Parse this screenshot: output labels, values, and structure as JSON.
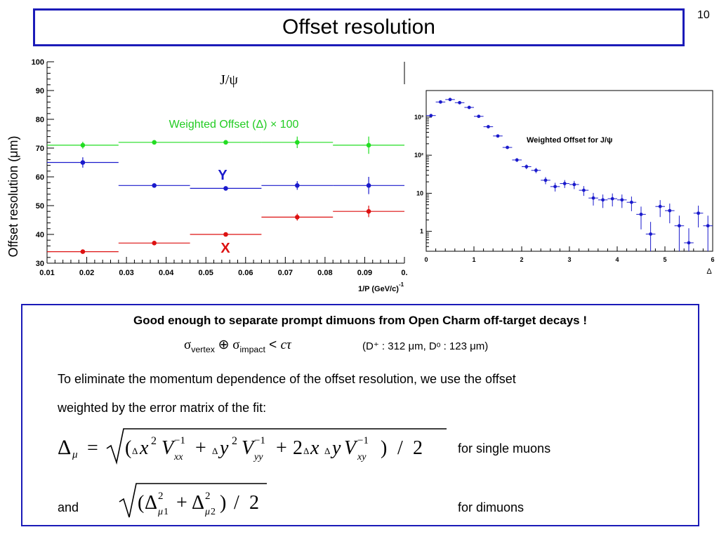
{
  "page": {
    "title": "Offset resolution",
    "number": "10"
  },
  "left_plot": {
    "ylabel": "Offset resolution (μm)",
    "xlabel": "1/P (GeV/c)",
    "xlabel_exp": "-1",
    "annotations": {
      "jpsi": "J/ψ",
      "weighted": "Weighted Offset (Δ) × 100",
      "y": "Y",
      "x": "X"
    },
    "x_ticks": [
      "0.01",
      "0.02",
      "0.03",
      "0.04",
      "0.05",
      "0.06",
      "0.07",
      "0.08",
      "0.09",
      "0."
    ],
    "y_ticks": [
      "30",
      "40",
      "50",
      "60",
      "70",
      "80",
      "90",
      "100"
    ]
  },
  "right_plot": {
    "legend": "Weighted Offset for J/ψ",
    "x_ticks": [
      "0",
      "1",
      "2",
      "3",
      "4",
      "5",
      "6"
    ],
    "y_ticks": [
      "1",
      "10",
      "10²",
      "10³"
    ],
    "xlabel": "Δ"
  },
  "chart_data": [
    {
      "type": "scatter",
      "title": "",
      "xlabel": "1/P (GeV/c)^-1",
      "ylabel": "Offset resolution (μm)",
      "xlim": [
        0.01,
        0.1
      ],
      "ylim": [
        30,
        100
      ],
      "grid": false,
      "series": [
        {
          "name": "Weighted Offset (Δ) × 100",
          "color": "#22dd22",
          "x": [
            0.019,
            0.037,
            0.055,
            0.073,
            0.091
          ],
          "xerr": [
            [
              0.01,
              0.028
            ],
            [
              0.028,
              0.046
            ],
            [
              0.046,
              0.064
            ],
            [
              0.064,
              0.082
            ],
            [
              0.082,
              0.1
            ]
          ],
          "y": [
            71,
            72,
            72,
            72,
            71
          ],
          "yerr": [
            1.2,
            0.6,
            0.6,
            2,
            3
          ]
        },
        {
          "name": "Y",
          "color": "#1a1acc",
          "x": [
            0.019,
            0.037,
            0.055,
            0.073,
            0.091
          ],
          "xerr": [
            [
              0.01,
              0.028
            ],
            [
              0.028,
              0.046
            ],
            [
              0.046,
              0.064
            ],
            [
              0.064,
              0.082
            ],
            [
              0.082,
              0.1
            ]
          ],
          "y": [
            65,
            57,
            56,
            57,
            57
          ],
          "yerr": [
            1.8,
            0.5,
            0.6,
            1.5,
            3
          ]
        },
        {
          "name": "X",
          "color": "#dd1111",
          "x": [
            0.019,
            0.037,
            0.055,
            0.073,
            0.091
          ],
          "xerr": [
            [
              0.01,
              0.028
            ],
            [
              0.028,
              0.046
            ],
            [
              0.046,
              0.064
            ],
            [
              0.064,
              0.082
            ],
            [
              0.082,
              0.1
            ]
          ],
          "y": [
            34,
            37,
            40,
            46,
            48
          ],
          "yerr": [
            0.5,
            0.4,
            0.5,
            1.2,
            2
          ]
        }
      ]
    },
    {
      "type": "scatter",
      "title": "Weighted Offset for J/ψ",
      "xlabel": "Δ",
      "ylabel": "",
      "xlim": [
        0,
        6
      ],
      "ylim": [
        0.3,
        5000
      ],
      "yscale": "log",
      "grid": false,
      "series": [
        {
          "name": "Weighted Offset for J/ψ",
          "color": "#1a1acc",
          "x": [
            0.1,
            0.3,
            0.5,
            0.7,
            0.9,
            1.1,
            1.3,
            1.5,
            1.7,
            1.9,
            2.1,
            2.3,
            2.5,
            2.7,
            2.9,
            3.1,
            3.3,
            3.5,
            3.7,
            3.9,
            4.1,
            4.3,
            4.5,
            4.7,
            4.9,
            5.1,
            5.3,
            5.5,
            5.7,
            5.9
          ],
          "y": [
            1100,
            2500,
            2900,
            2400,
            1800,
            1050,
            560,
            320,
            160,
            75,
            50,
            40,
            22,
            15,
            18,
            17,
            12,
            7.5,
            6.7,
            7.2,
            6.7,
            5.8,
            2.8,
            0.85,
            4.5,
            3.5,
            1.4,
            0.5,
            3,
            1.4
          ]
        }
      ]
    }
  ],
  "text": {
    "headline": "Good enough to separate prompt dimuons from Open Charm off-target decays !",
    "sigma_vertex": "σ",
    "vertex_sub": "vertex",
    "oplus": " ⊕ ",
    "sigma_impact": "σ",
    "impact_sub": "impact",
    "lt": " < ",
    "ctau": "cτ",
    "dvals": "(D⁺ : 312 μm,  Dᵒ : 123 μm)",
    "para_line1": "To eliminate the momentum dependence of the offset resolution, we use the offset",
    "para_line2": "weighted by the error matrix of the fit:",
    "for_single": "for single muons",
    "and": "and",
    "for_dimuons": "for dimuons"
  }
}
